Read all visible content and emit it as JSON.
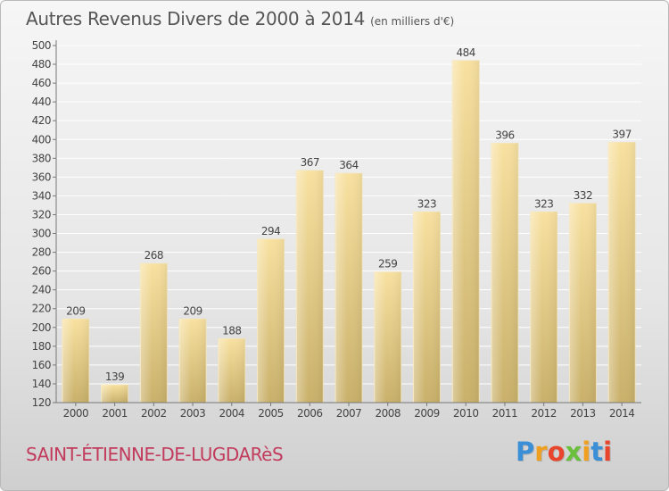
{
  "title": "Autres Revenus Divers de 2000 à 2014",
  "unit": "(en milliers d'€)",
  "commune": "SAINT-ÉTIENNE-DE-LUGDARèS",
  "logo": {
    "text": "Proxiti",
    "letter_colors": [
      "#3b8fd6",
      "#f0a020",
      "#e8452c",
      "#6abf3c",
      "#f0a020",
      "#3b8fd6",
      "#e8452c"
    ]
  },
  "colors": {
    "bar_light": "#f8e1a0",
    "bar_dark": "#c9b06a",
    "label": "#444444",
    "title": "#555555",
    "commune": "#c23a5c"
  },
  "chart_data": {
    "type": "bar",
    "categories": [
      "2000",
      "2001",
      "2002",
      "2003",
      "2004",
      "2005",
      "2006",
      "2007",
      "2008",
      "2009",
      "2010",
      "2011",
      "2012",
      "2013",
      "2014"
    ],
    "values": [
      209,
      139,
      268,
      209,
      188,
      294,
      367,
      364,
      259,
      323,
      484,
      396,
      323,
      332,
      397
    ],
    "title": "Autres Revenus Divers de 2000 à 2014",
    "xlabel": "",
    "ylabel": "",
    "ylim": [
      120,
      500
    ],
    "yticks": [
      120,
      140,
      160,
      180,
      200,
      220,
      240,
      260,
      280,
      300,
      320,
      340,
      360,
      380,
      400,
      420,
      440,
      460,
      480,
      500
    ],
    "grid": true,
    "data_labels": true
  }
}
